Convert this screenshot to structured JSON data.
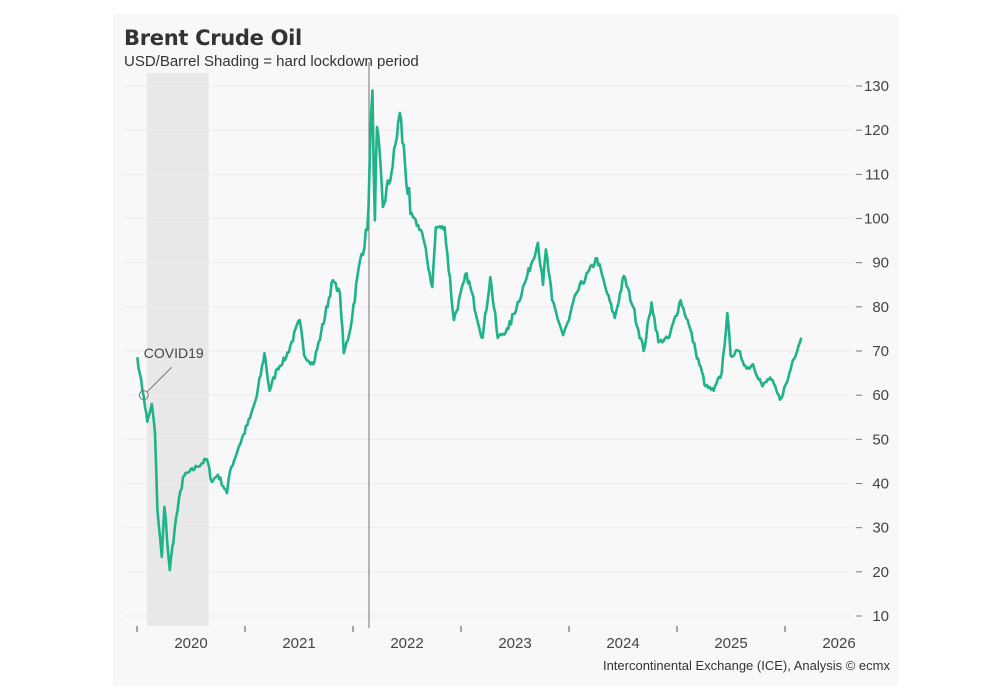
{
  "chart_data": {
    "type": "line",
    "title": "Brent Crude Oil",
    "subtitle": "USD/Barrel Shading = hard lockdown period",
    "source": "Intercontinental Exchange (ICE), Analysis © ecmx",
    "xlabel": "",
    "ylabel": "",
    "ylim": [
      10,
      130
    ],
    "yticks": [
      "130",
      "120",
      "110",
      "100",
      "90",
      "80",
      "70",
      "60",
      "50",
      "40",
      "30",
      "20",
      "10"
    ],
    "xlim": [
      "2020-01-01",
      "2026-01-01"
    ],
    "xticks": [
      "2020",
      "2021",
      "2022",
      "2023",
      "2024",
      "2025",
      "2026"
    ],
    "grid": true,
    "y_axis_position": "right",
    "line_color": "#1fb38a",
    "shaded_period": {
      "start": "2020-02-04",
      "end": "2020-08-31",
      "color": "#e8e8e8"
    },
    "vertical_marker": {
      "date": "2022-02-24"
    },
    "annotation": {
      "label": "COVID19",
      "date": "2020-01-24",
      "value": 60
    },
    "points": [
      [
        "2020-01-02",
        68.6
      ],
      [
        "2020-01-10",
        65
      ],
      [
        "2020-01-24",
        59.6
      ],
      [
        "2020-02-05",
        54
      ],
      [
        "2020-02-20",
        58
      ],
      [
        "2020-03-02",
        51.4
      ],
      [
        "2020-03-10",
        34
      ],
      [
        "2020-03-25",
        23.4
      ],
      [
        "2020-04-03",
        34.7
      ],
      [
        "2020-04-21",
        20.4
      ],
      [
        "2020-05-08",
        30
      ],
      [
        "2020-06-05",
        41.5
      ],
      [
        "2020-07-22",
        43.8
      ],
      [
        "2020-08-25",
        45.5
      ],
      [
        "2020-09-10",
        40.4
      ],
      [
        "2020-10-01",
        42
      ],
      [
        "2020-11-01",
        37.8
      ],
      [
        "2020-11-12",
        43
      ],
      [
        "2020-12-12",
        48.5
      ],
      [
        "2021-01-18",
        54.8
      ],
      [
        "2021-02-10",
        59.8
      ],
      [
        "2021-03-08",
        69.5
      ],
      [
        "2021-03-25",
        61
      ],
      [
        "2021-04-20",
        66
      ],
      [
        "2021-05-20",
        68.6
      ],
      [
        "2021-07-05",
        77
      ],
      [
        "2021-07-20",
        69
      ],
      [
        "2021-08-20",
        67
      ],
      [
        "2021-09-15",
        74
      ],
      [
        "2021-10-25",
        86
      ],
      [
        "2021-11-18",
        83
      ],
      [
        "2021-12-01",
        69.5
      ],
      [
        "2021-12-20",
        74
      ],
      [
        "2022-01-25",
        90.6
      ],
      [
        "2022-02-18",
        97.4
      ],
      [
        "2022-03-08",
        129
      ],
      [
        "2022-03-16",
        99.6
      ],
      [
        "2022-03-23",
        120.7
      ],
      [
        "2022-04-12",
        102.6
      ],
      [
        "2022-05-15",
        111.7
      ],
      [
        "2022-06-08",
        123.9
      ],
      [
        "2022-07-14",
        101
      ],
      [
        "2022-08-22",
        97
      ],
      [
        "2022-09-26",
        84.5
      ],
      [
        "2022-10-08",
        98
      ],
      [
        "2022-11-07",
        98
      ],
      [
        "2022-12-08",
        77
      ],
      [
        "2023-01-20",
        87.6
      ],
      [
        "2023-03-15",
        73
      ],
      [
        "2023-04-10",
        86.7
      ],
      [
        "2023-05-05",
        73
      ],
      [
        "2023-06-10",
        75
      ],
      [
        "2023-08-08",
        86
      ],
      [
        "2023-09-18",
        94.5
      ],
      [
        "2023-10-05",
        85
      ],
      [
        "2023-10-15",
        93
      ],
      [
        "2023-11-05",
        81.5
      ],
      [
        "2023-12-12",
        73.6
      ],
      [
        "2024-01-01",
        77
      ],
      [
        "2024-01-25",
        83
      ],
      [
        "2024-04-05",
        91
      ],
      [
        "2024-05-05",
        84
      ],
      [
        "2024-06-04",
        77.5
      ],
      [
        "2024-07-05",
        87
      ],
      [
        "2024-08-05",
        80
      ],
      [
        "2024-09-10",
        70
      ],
      [
        "2024-10-07",
        81
      ],
      [
        "2024-10-30",
        72
      ],
      [
        "2024-12-05",
        73
      ],
      [
        "2025-01-13",
        81.5
      ],
      [
        "2025-02-10",
        76
      ],
      [
        "2025-03-05",
        70
      ],
      [
        "2025-04-08",
        62
      ],
      [
        "2025-05-05",
        61
      ],
      [
        "2025-06-01",
        65
      ],
      [
        "2025-06-20",
        78.6
      ],
      [
        "2025-07-01",
        69
      ],
      [
        "2025-07-28",
        70
      ],
      [
        "2025-08-25",
        66
      ],
      [
        "2025-09-15",
        67
      ],
      [
        "2025-10-17",
        62
      ],
      [
        "2025-11-12",
        64
      ],
      [
        "2025-12-15",
        59
      ],
      [
        "2026-01-08",
        63
      ],
      [
        "2026-01-28",
        68
      ],
      [
        "2026-02-25",
        73
      ]
    ]
  }
}
